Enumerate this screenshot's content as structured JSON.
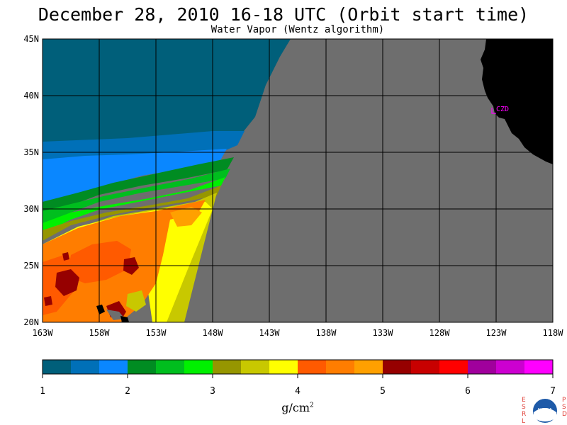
{
  "header": {
    "title": "December 28, 2010  16-18 UTC  (Orbit start time)",
    "subtitle": "Water Vapor (Wentz algorithm)"
  },
  "axes": {
    "lat_labels": [
      "45N",
      "40N",
      "35N",
      "30N",
      "25N",
      "20N"
    ],
    "lon_labels": [
      "163W",
      "158W",
      "153W",
      "148W",
      "143W",
      "138W",
      "133W",
      "128W",
      "123W",
      "118W"
    ],
    "lat_range": [
      20,
      45
    ],
    "lon_range": [
      -163,
      -118
    ]
  },
  "station": {
    "label": "CZD"
  },
  "colorbar": {
    "ticks": [
      "1",
      "2",
      "3",
      "4",
      "5",
      "6",
      "7"
    ],
    "unit_base": "g/cm",
    "unit_exp": "2",
    "colors": [
      "#005f7a",
      "#0070b8",
      "#0a87ff",
      "#008c22",
      "#00be1e",
      "#00f000",
      "#969600",
      "#c8c800",
      "#ffff00",
      "#ff5a00",
      "#ff7d00",
      "#ffa000",
      "#960000",
      "#c80000",
      "#ff0000",
      "#a0009c",
      "#cc00d0",
      "#ff00ff"
    ]
  },
  "map_colors": {
    "no_data": "#6e6e6e",
    "land": "#000000"
  },
  "branding": {
    "left_vertical": [
      "E",
      "S",
      "R",
      "L"
    ],
    "right_vertical": [
      "P",
      "S",
      "D"
    ],
    "logo_text": "NOAA"
  }
}
